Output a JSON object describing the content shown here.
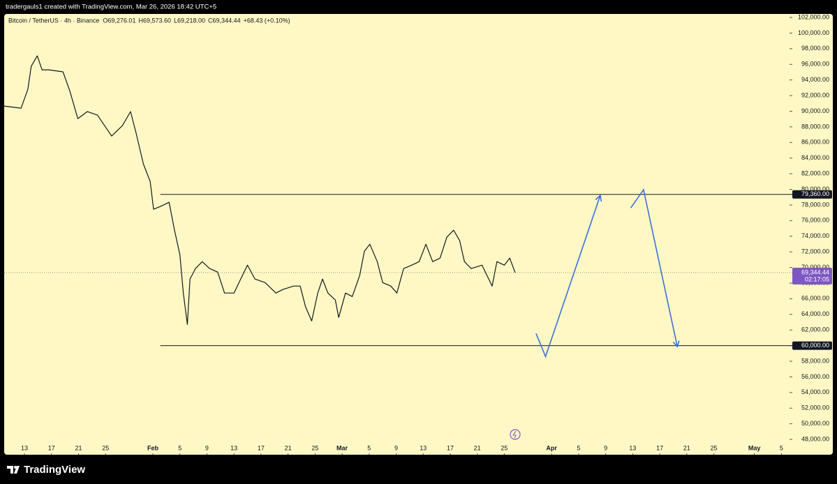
{
  "chart_data": {
    "type": "line",
    "credit": "tradergauls1 created with TradingView.com, Mar 26, 2026 18:42 UTC+5",
    "title": "Bitcoin / TetherUS · 4h · Binance",
    "ohlc": [
      "O69,276.01",
      "H69,573.60",
      "L69,218.00",
      "C69,344.44",
      "+68.43 (+0.10%)"
    ],
    "brand": "TradingView",
    "color": "#131722",
    "x": [
      10.0,
      12.5,
      13.5,
      14.0,
      14.9,
      15.6,
      16.6,
      18.7,
      19.7,
      20.9,
      22.3,
      23.8,
      25.9,
      27.5,
      28.7,
      29.5,
      30.6,
      31.6,
      32.1,
      33.3,
      34.4,
      35.2,
      36.0,
      36.5,
      37.1,
      37.5,
      38.3,
      39.3,
      40.4,
      41.6,
      42.6,
      44.0,
      45.0,
      46.0,
      47.1,
      48.6,
      50.2,
      51.2,
      52.8,
      53.8,
      54.6,
      55.5,
      56.4,
      57.1,
      57.9,
      59.0,
      59.5,
      60.5,
      61.5,
      62.6,
      63.3,
      64.1,
      65.2,
      66.0,
      67.2,
      68.1,
      69.1,
      70.3,
      71.4,
      72.4,
      73.4,
      74.5,
      75.5,
      76.5,
      77.4,
      78.1,
      79.1,
      80.7,
      81.7,
      82.2,
      82.9,
      84.0,
      84.8,
      85.6
    ],
    "values": [
      90660,
      90390,
      92800,
      95750,
      97090,
      95300,
      95300,
      95040,
      92620,
      89050,
      89950,
      89500,
      86820,
      88160,
      89950,
      87270,
      83250,
      81020,
      77450,
      77890,
      78340,
      74770,
      71640,
      66730,
      62710,
      68520,
      69860,
      70750,
      69860,
      69410,
      66730,
      66730,
      68520,
      70300,
      68520,
      68070,
      66730,
      67180,
      67620,
      67620,
      64940,
      63160,
      66730,
      68520,
      66730,
      65840,
      63610,
      66730,
      66280,
      68960,
      72090,
      72980,
      70750,
      68070,
      67620,
      66730,
      69860,
      70300,
      70750,
      72980,
      70750,
      71200,
      73880,
      74770,
      73430,
      70750,
      69860,
      70300,
      68520,
      67620,
      70750,
      70300,
      71200,
      69344.44
    ],
    "levels": [
      {
        "value": 79360,
        "label": "79,360.00",
        "from": 33.1
      },
      {
        "value": 60000,
        "label": "60,000.00",
        "from": 33.1
      }
    ],
    "last": {
      "value": 69344.44,
      "label": "69,344.44",
      "countdown": "02:17:05"
    },
    "drawings": [
      {
        "color": "#3b6fe0",
        "x": [
          88.7,
          90.1,
          98.2
        ],
        "values": [
          61550,
          58600,
          79230
        ]
      },
      {
        "color": "#3b6fe0",
        "x": [
          102.7,
          104.6,
          109.6
        ],
        "values": [
          77620,
          79950,
          59860
        ]
      }
    ],
    "xlim": [
      10.0,
      126.1
    ],
    "ylim": [
      46040,
      102450
    ],
    "xticks": [
      {
        "value": 13,
        "label": "13"
      },
      {
        "value": 17,
        "label": "17"
      },
      {
        "value": 21,
        "label": "21"
      },
      {
        "value": 25,
        "label": "25"
      },
      {
        "value": 32,
        "label": "Feb"
      },
      {
        "value": 36,
        "label": "5"
      },
      {
        "value": 40,
        "label": "9"
      },
      {
        "value": 44,
        "label": "13"
      },
      {
        "value": 48,
        "label": "17"
      },
      {
        "value": 52,
        "label": "21"
      },
      {
        "value": 56,
        "label": "25"
      },
      {
        "value": 60,
        "label": "Mar"
      },
      {
        "value": 64,
        "label": "5"
      },
      {
        "value": 68,
        "label": "9"
      },
      {
        "value": 72,
        "label": "13"
      },
      {
        "value": 76,
        "label": "17"
      },
      {
        "value": 80,
        "label": "21"
      },
      {
        "value": 84,
        "label": "25"
      },
      {
        "value": 91,
        "label": "Apr"
      },
      {
        "value": 95,
        "label": "5"
      },
      {
        "value": 99,
        "label": "9"
      },
      {
        "value": 103,
        "label": "13"
      },
      {
        "value": 107,
        "label": "17"
      },
      {
        "value": 111,
        "label": "21"
      },
      {
        "value": 115,
        "label": "25"
      },
      {
        "value": 121,
        "label": "May"
      },
      {
        "value": 125,
        "label": "5"
      }
    ],
    "yticks": [
      {
        "value": 48000,
        "label": "48,000.00"
      },
      {
        "value": 50000,
        "label": "50,000.00"
      },
      {
        "value": 52000,
        "label": "52,000.00"
      },
      {
        "value": 54000,
        "label": "54,000.00"
      },
      {
        "value": 56000,
        "label": "56,000.00"
      },
      {
        "value": 58000,
        "label": "58,000.00"
      },
      {
        "value": 60000,
        "label": "60,000.00"
      },
      {
        "value": 62000,
        "label": "62,000.00"
      },
      {
        "value": 64000,
        "label": "64,000.00"
      },
      {
        "value": 66000,
        "label": "66,000.00"
      },
      {
        "value": 68000,
        "label": "68,000.00"
      },
      {
        "value": 70000,
        "label": "70,000.00"
      },
      {
        "value": 72000,
        "label": "72,000.00"
      },
      {
        "value": 74000,
        "label": "74,000.00"
      },
      {
        "value": 76000,
        "label": "76,000.00"
      },
      {
        "value": 78000,
        "label": "78,000.00"
      },
      {
        "value": 80000,
        "label": "80,000.00"
      },
      {
        "value": 82000,
        "label": "82,000.00"
      },
      {
        "value": 84000,
        "label": "84,000.00"
      },
      {
        "value": 86000,
        "label": "86,000.00"
      },
      {
        "value": 88000,
        "label": "88,000.00"
      },
      {
        "value": 90000,
        "label": "90,000.00"
      },
      {
        "value": 92000,
        "label": "92,000.00"
      },
      {
        "value": 94000,
        "label": "94,000.00"
      },
      {
        "value": 96000,
        "label": "96,000.00"
      },
      {
        "value": 98000,
        "label": "98,000.00"
      },
      {
        "value": 100000,
        "label": "100,000.00"
      },
      {
        "value": 102000,
        "label": "102,000.00"
      }
    ]
  }
}
